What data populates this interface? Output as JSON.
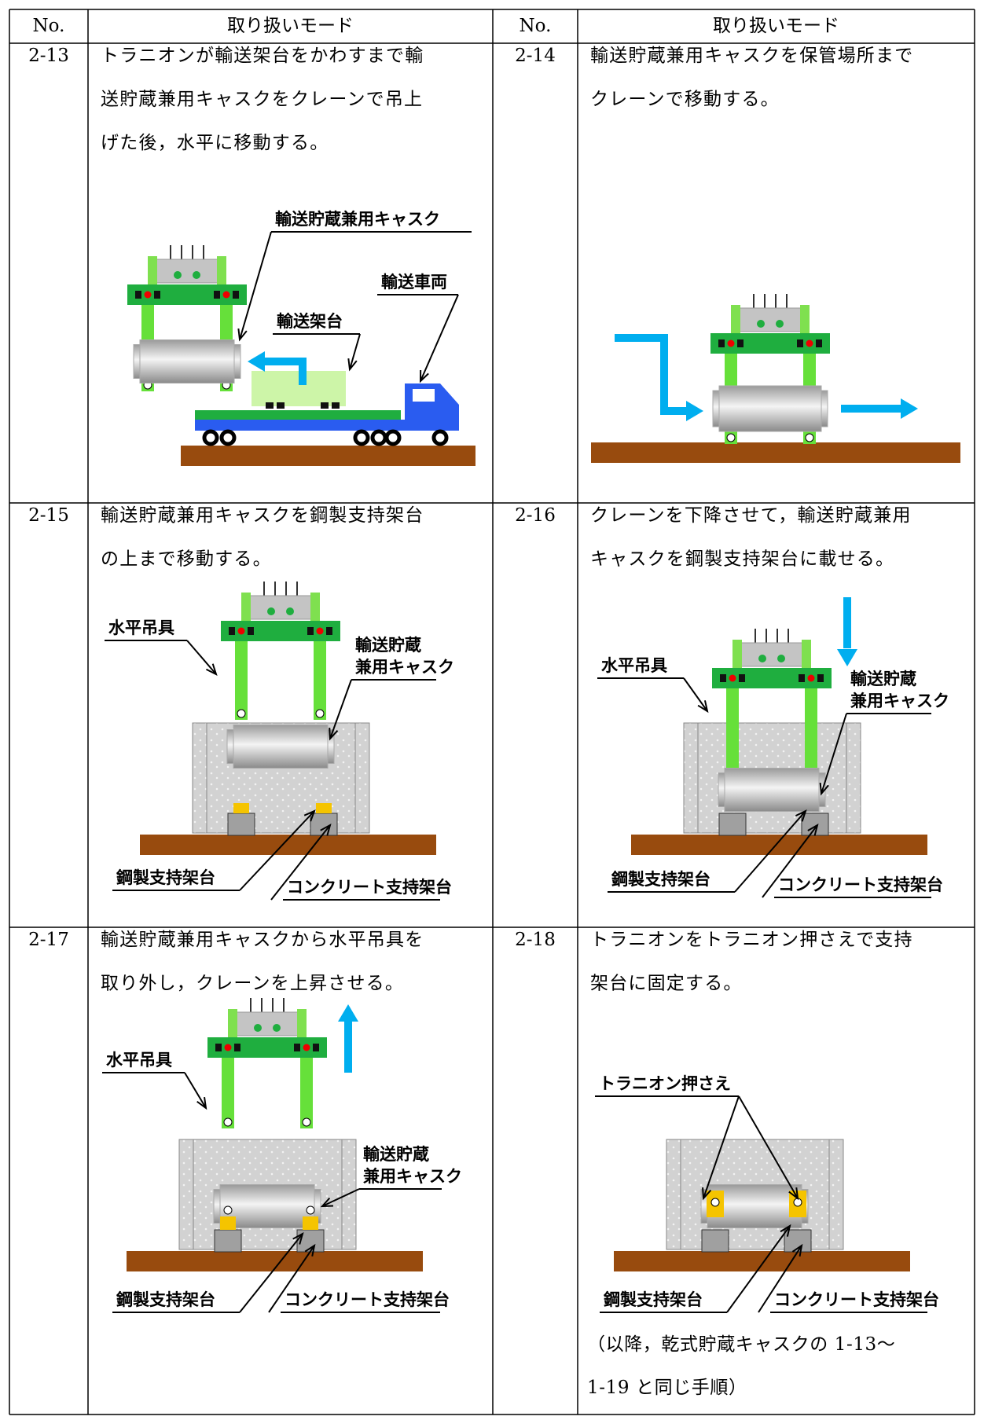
{
  "header": [
    "No.",
    "取り扱いモード",
    "No.",
    "取り扱いモード"
  ],
  "cells": [
    {
      "no": "2-13",
      "text": [
        "トラニオンが輸送架台をかわすまで輸",
        "送貯蔵兼用キャスクをクレーンで吊上",
        "げた後，水平に移動する。"
      ],
      "labels": [
        "輸送貯蔵兼用キャスク",
        "輸送車両",
        "輸送架台"
      ]
    },
    {
      "no": "2-14",
      "text": [
        "輸送貯蔵兼用キャスクを保管場所まで",
        "クレーンで移動する。"
      ],
      "labels": []
    },
    {
      "no": "2-15",
      "text": [
        "輸送貯蔵兼用キャスクを鋼製支持架台",
        "の上まで移動する。"
      ],
      "labels": [
        "水平吊具",
        "輸送貯蔵",
        "兼用キャスク",
        "鋼製支持架台",
        "コンクリート支持架台"
      ]
    },
    {
      "no": "2-16",
      "text": [
        "クレーンを下降させて，輸送貯蔵兼用",
        "キャスクを鋼製支持架台に載せる。"
      ],
      "labels": [
        "水平吊具",
        "輸送貯蔵",
        "兼用キャスク",
        "鋼製支持架台",
        "コンクリート支持架台"
      ]
    },
    {
      "no": "2-17",
      "text": [
        "輸送貯蔵兼用キャスクから水平吊具を",
        "取り外し，クレーンを上昇させる。"
      ],
      "labels": [
        "水平吊具",
        "輸送貯蔵",
        "兼用キャスク",
        "鋼製支持架台",
        "コンクリート支持架台"
      ]
    },
    {
      "no": "2-18",
      "text": [
        "トラニオンをトラニオン押さえで支持",
        "架台に固定する。"
      ],
      "labels": [
        "トラニオン押さえ",
        "鋼製支持架台",
        "コンクリート支持架台"
      ],
      "note": [
        "（以降，乾式貯蔵キャスクの 1-13～",
        "1-19 と同じ手順）"
      ]
    }
  ]
}
